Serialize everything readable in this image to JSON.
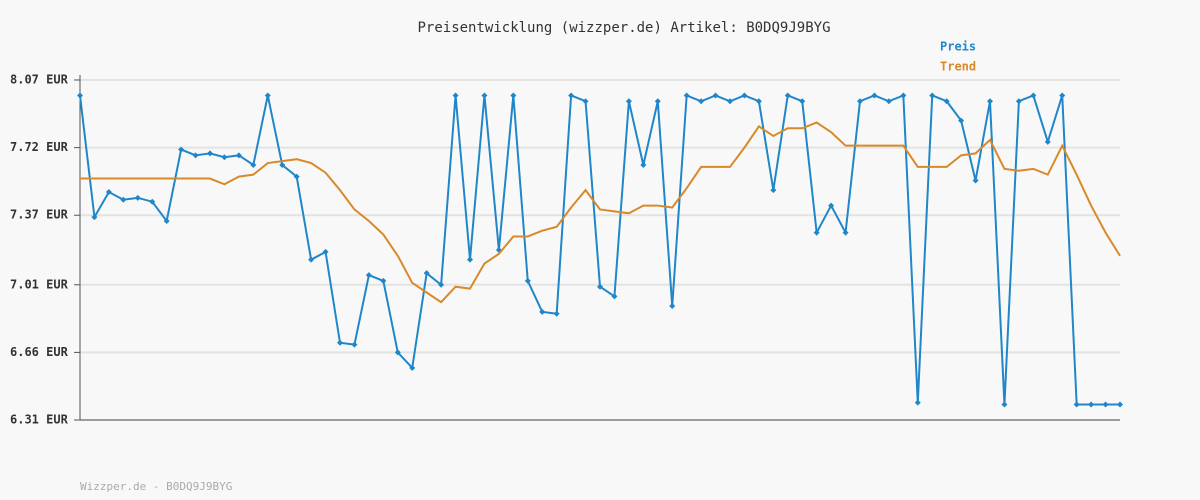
{
  "chart_data": {
    "type": "line",
    "title": "Preisentwicklung (wizzper.de) Artikel: B0DQ9J9BYG",
    "footer": "Wizzper.de - B0DQ9J9BYG",
    "ylim": [
      6.31,
      8.07
    ],
    "yticks": [
      {
        "value": 6.31,
        "label": "6.31 EUR"
      },
      {
        "value": 6.66,
        "label": "6.66 EUR"
      },
      {
        "value": 7.01,
        "label": "7.01 EUR"
      },
      {
        "value": 7.37,
        "label": "7.37 EUR"
      },
      {
        "value": 7.72,
        "label": "7.72 EUR"
      },
      {
        "value": 8.07,
        "label": "8.07 EUR"
      }
    ],
    "grid": true,
    "legend": "top-right",
    "series": [
      {
        "name": "Preis",
        "color": "#1f87c9",
        "markers": true,
        "values": [
          7.99,
          7.36,
          7.49,
          7.45,
          7.46,
          7.44,
          7.34,
          7.71,
          7.68,
          7.69,
          7.67,
          7.68,
          7.63,
          7.99,
          7.63,
          7.57,
          7.14,
          7.18,
          6.71,
          6.7,
          7.06,
          7.03,
          6.66,
          6.58,
          7.07,
          7.01,
          7.99,
          7.14,
          7.99,
          7.19,
          7.99,
          7.03,
          6.87,
          6.86,
          7.99,
          7.96,
          7.0,
          6.95,
          7.96,
          7.63,
          7.96,
          6.9,
          7.99,
          7.96,
          7.99,
          7.96,
          7.99,
          7.96,
          7.5,
          7.99,
          7.96,
          7.28,
          7.42,
          7.28,
          7.96,
          7.99,
          7.96,
          7.99,
          6.4,
          7.99,
          7.96,
          7.86,
          7.55,
          7.96,
          6.39,
          7.96,
          7.99,
          7.75,
          7.99,
          6.39,
          6.39,
          6.39,
          6.39
        ]
      },
      {
        "name": "Trend",
        "color": "#d8892a",
        "markers": false,
        "values": [
          7.56,
          7.56,
          7.56,
          7.56,
          7.56,
          7.56,
          7.56,
          7.56,
          7.56,
          7.56,
          7.53,
          7.57,
          7.58,
          7.64,
          7.65,
          7.66,
          7.64,
          7.59,
          7.5,
          7.4,
          7.34,
          7.27,
          7.16,
          7.02,
          6.97,
          6.92,
          7.0,
          6.99,
          7.12,
          7.17,
          7.26,
          7.26,
          7.29,
          7.31,
          7.41,
          7.5,
          7.4,
          7.39,
          7.38,
          7.42,
          7.42,
          7.41,
          7.51,
          7.62,
          7.62,
          7.62,
          7.72,
          7.83,
          7.78,
          7.82,
          7.82,
          7.85,
          7.8,
          7.73,
          7.73,
          7.73,
          7.73,
          7.73,
          7.62,
          7.62,
          7.62,
          7.68,
          7.69,
          7.76,
          7.61,
          7.6,
          7.61,
          7.58,
          7.73,
          7.58,
          7.42,
          7.28,
          7.16
        ]
      }
    ]
  }
}
